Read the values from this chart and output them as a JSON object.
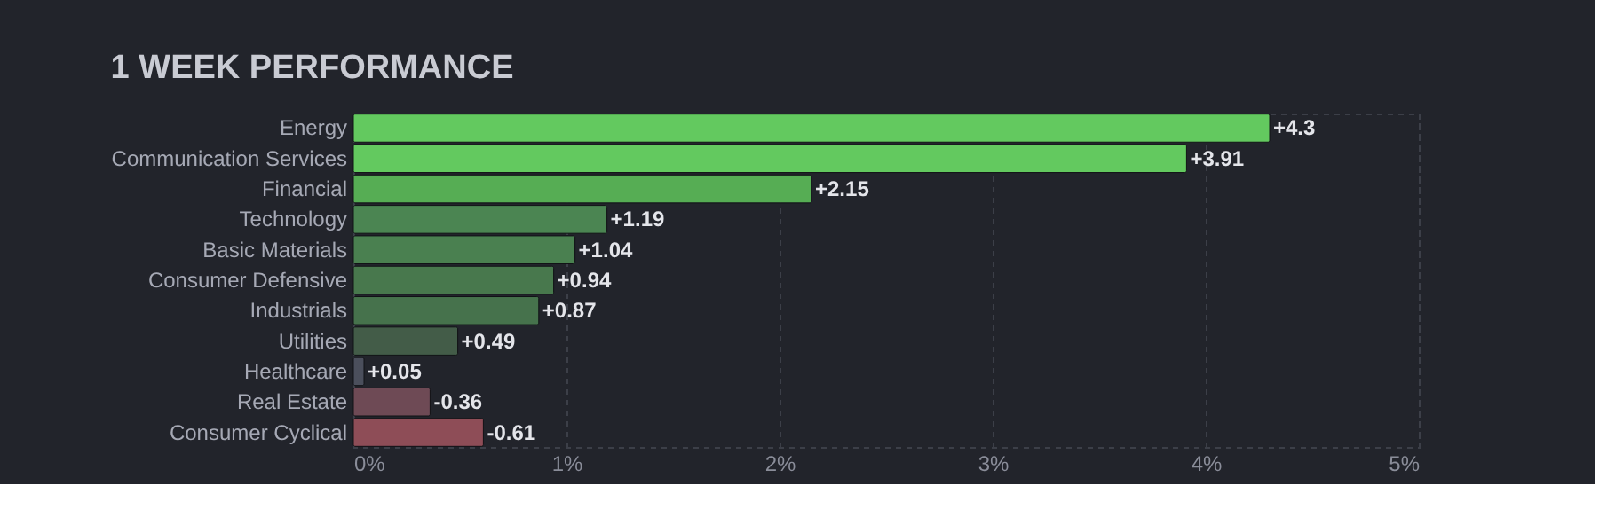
{
  "chart_data": {
    "type": "bar",
    "orientation": "horizontal",
    "title": "1 WEEK PERFORMANCE",
    "categories": [
      "Energy",
      "Communication Services",
      "Financial",
      "Technology",
      "Basic Materials",
      "Consumer Defensive",
      "Industrials",
      "Utilities",
      "Healthcare",
      "Real Estate",
      "Consumer Cyclical"
    ],
    "values": [
      4.3,
      3.91,
      2.15,
      1.19,
      1.04,
      0.94,
      0.87,
      0.49,
      0.05,
      -0.36,
      -0.61
    ],
    "base": [
      0,
      0,
      0,
      0,
      0,
      0,
      0,
      0,
      0,
      0.36,
      0.61
    ],
    "value_labels": [
      "+4.3",
      "+3.91",
      "+2.15",
      "+1.19",
      "+1.04",
      "+0.94",
      "+0.87",
      "+0.49",
      "+0.05",
      "-0.36",
      "-0.61"
    ],
    "colors": [
      "#63c95f",
      "#63c95f",
      "#56ad54",
      "#4b8552",
      "#4a8050",
      "#48784d",
      "#46724c",
      "#435c48",
      "#4b4f5c",
      "#6e4a55",
      "#8e4d57"
    ],
    "xlim": [
      0,
      5
    ],
    "xticks": [
      {
        "value": 0,
        "label": "0%"
      },
      {
        "value": 1,
        "label": "1%"
      },
      {
        "value": 2,
        "label": "2%"
      },
      {
        "value": 3,
        "label": "3%"
      },
      {
        "value": 4,
        "label": "4%"
      },
      {
        "value": 5,
        "label": "5%"
      }
    ],
    "grid": "x"
  }
}
